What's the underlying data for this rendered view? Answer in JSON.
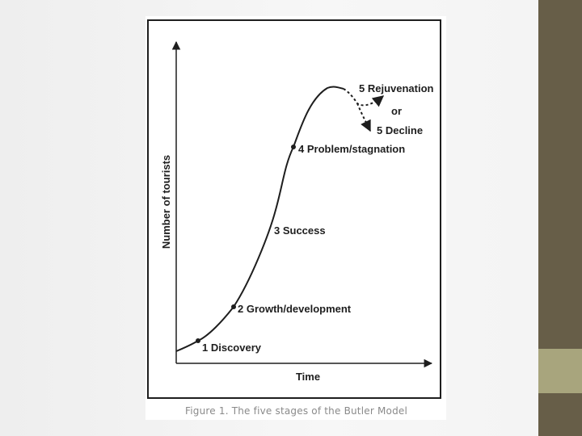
{
  "figure": {
    "y_axis_label": "Number of tourists",
    "x_axis_label": "Time",
    "stages": [
      {
        "label": "1 Discovery"
      },
      {
        "label": "2 Growth/development"
      },
      {
        "label": "3 Success"
      },
      {
        "label": "4 Problem/stagnation"
      },
      {
        "label": "5 Rejuvenation"
      },
      {
        "label": "or"
      },
      {
        "label": "5 Decline"
      }
    ],
    "caption": "Figure 1. The five stages of the Butler Model"
  },
  "colors": {
    "sidebar_dark": "#675e48",
    "sidebar_accent": "#a8a57d",
    "line": "#1e1e1e"
  }
}
